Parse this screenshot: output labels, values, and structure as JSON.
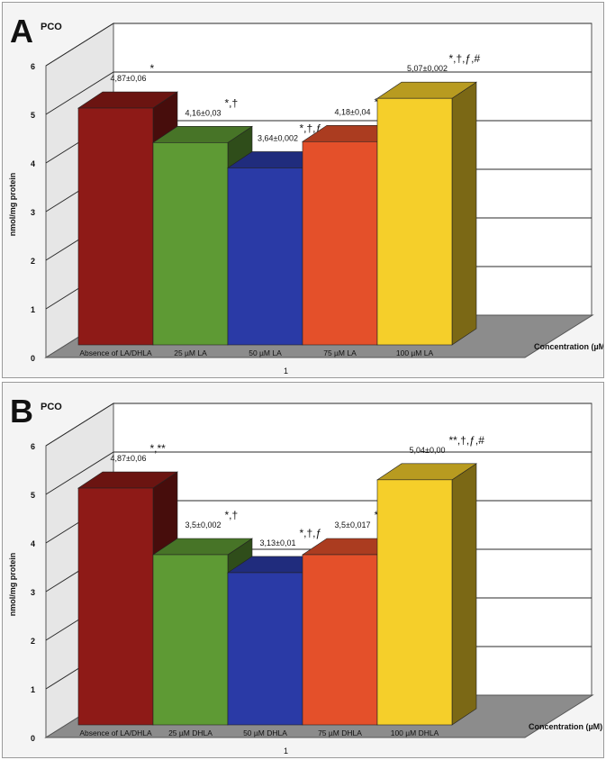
{
  "colors": {
    "panel_bg": "#f4f4f4",
    "wall": "#ffffff",
    "floor": "#8c8c8c",
    "grid": "#2a2a2a",
    "bars": [
      "#8e1a17",
      "#5e9a34",
      "#2a3aa6",
      "#e4502a",
      "#f5cf2a"
    ]
  },
  "chart_data": [
    {
      "panel_letter": "A",
      "title": "PCO",
      "type": "bar",
      "style": "3d",
      "ylabel": "nmol/mg protein",
      "xlabel": "Concentration (µM)",
      "series_label": "1",
      "ylim": [
        0,
        6
      ],
      "yticks": [
        "0",
        "1",
        "2",
        "3",
        "4",
        "5",
        "6"
      ],
      "grid": true,
      "categories": [
        "Absence of LA/DHLA",
        "25 µM LA",
        "50 µM LA",
        "75 µM LA",
        "100 µM LA"
      ],
      "values": [
        4.87,
        4.16,
        3.64,
        4.18,
        5.07
      ],
      "data_labels": [
        "4,87±0,06",
        "4,16±0,03",
        "3,64±0,002",
        "4,18±0,04",
        "5,07±0,002"
      ],
      "significance": [
        "*",
        "*,†",
        "*,†,ƒ",
        "*,ƒ,#",
        "*,†,ƒ,#"
      ]
    },
    {
      "panel_letter": "B",
      "title": "PCO",
      "type": "bar",
      "style": "3d",
      "ylabel": "nmol/mg protein",
      "xlabel": "Concentration (µM)",
      "series_label": "1",
      "ylim": [
        0,
        6
      ],
      "yticks": [
        "0",
        "1",
        "2",
        "3",
        "4",
        "5",
        "6"
      ],
      "grid": true,
      "categories": [
        "Absence of LA/DHLA",
        "25 µM DHLA",
        "50 µM  DHLA",
        "75 µM  DHLA",
        "100 µM DHLA"
      ],
      "values": [
        4.87,
        3.5,
        3.13,
        3.5,
        5.04
      ],
      "data_labels": [
        "4,87±0,06",
        "3,5±0,002",
        "3,13±0,01",
        "3,5±0,017",
        "5,04±0,00"
      ],
      "significance": [
        "*,**",
        "*,†",
        "*,†,ƒ",
        "*,ƒ,#",
        "**,†,ƒ,#"
      ]
    }
  ]
}
